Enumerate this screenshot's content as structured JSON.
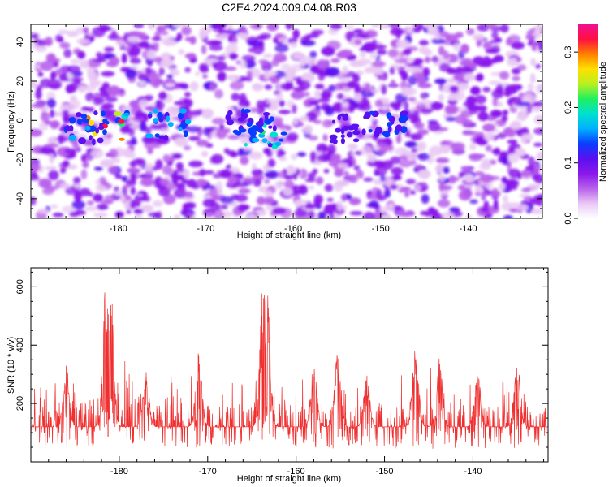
{
  "title": "C2E4.2024.009.04.08.R03",
  "colors": {
    "snr_line": "#f03030",
    "colormap": [
      "#ffffff",
      "#e9c8f4",
      "#b860ec",
      "#8a18ec",
      "#5a10f0",
      "#0a3cff",
      "#00b0ff",
      "#00e0d0",
      "#20f060",
      "#b8f020",
      "#ffe000",
      "#ff8000",
      "#ff1040",
      "#f01090"
    ]
  },
  "chart_data": [
    {
      "type": "heatmap",
      "xlabel": "Height of straight line (km)",
      "ylabel": "Frequency (Hz)",
      "xlim": [
        -190,
        -131.5
      ],
      "ylim": [
        -50,
        49
      ],
      "xticks": [
        -180,
        -170,
        -160,
        -150,
        -140
      ],
      "yticks": [
        -40,
        -20,
        0,
        20,
        40
      ],
      "colorbar": {
        "label": "Normalized spectral amplitude",
        "range": [
          0,
          0.35
        ],
        "ticks": [
          0.0,
          0.1,
          0.2,
          0.3
        ]
      },
      "hotspots": [
        {
          "x": -181.5,
          "y": -3,
          "amp": 0.33
        },
        {
          "x": -163.5,
          "y": -6,
          "amp": 0.22
        },
        {
          "x": -183.5,
          "y": -4,
          "amp": 0.15
        },
        {
          "x": -174,
          "y": -2,
          "amp": 0.17
        },
        {
          "x": -149,
          "y": -2,
          "amp": 0.14
        },
        {
          "x": -165,
          "y": -2,
          "amp": 0.14
        },
        {
          "x": -154,
          "y": -4,
          "amp": 0.11
        }
      ]
    },
    {
      "type": "line",
      "xlabel": "Height of straight line (km)",
      "ylabel": "SNR (10 * v/v)",
      "xlim": [
        -190,
        -131.5
      ],
      "ylim": [
        0,
        665
      ],
      "xticks": [
        -180,
        -170,
        -160,
        -150,
        -140
      ],
      "yticks": [
        200,
        400,
        600
      ],
      "series": [
        {
          "baseline": 120,
          "peaks": [
            {
              "x": -181.5,
              "y": 630
            },
            {
              "x": -181.0,
              "y": 620
            },
            {
              "x": -163.7,
              "y": 665
            },
            {
              "x": -163.3,
              "y": 590
            },
            {
              "x": -171.0,
              "y": 380
            },
            {
              "x": -146.5,
              "y": 400
            },
            {
              "x": -155.3,
              "y": 380
            },
            {
              "x": -143.8,
              "y": 360
            },
            {
              "x": -186.0,
              "y": 330
            },
            {
              "x": -177.0,
              "y": 320
            },
            {
              "x": -158.0,
              "y": 340
            },
            {
              "x": -139.5,
              "y": 330
            },
            {
              "x": -135.0,
              "y": 350
            },
            {
              "x": -152.0,
              "y": 300
            }
          ]
        }
      ]
    }
  ]
}
